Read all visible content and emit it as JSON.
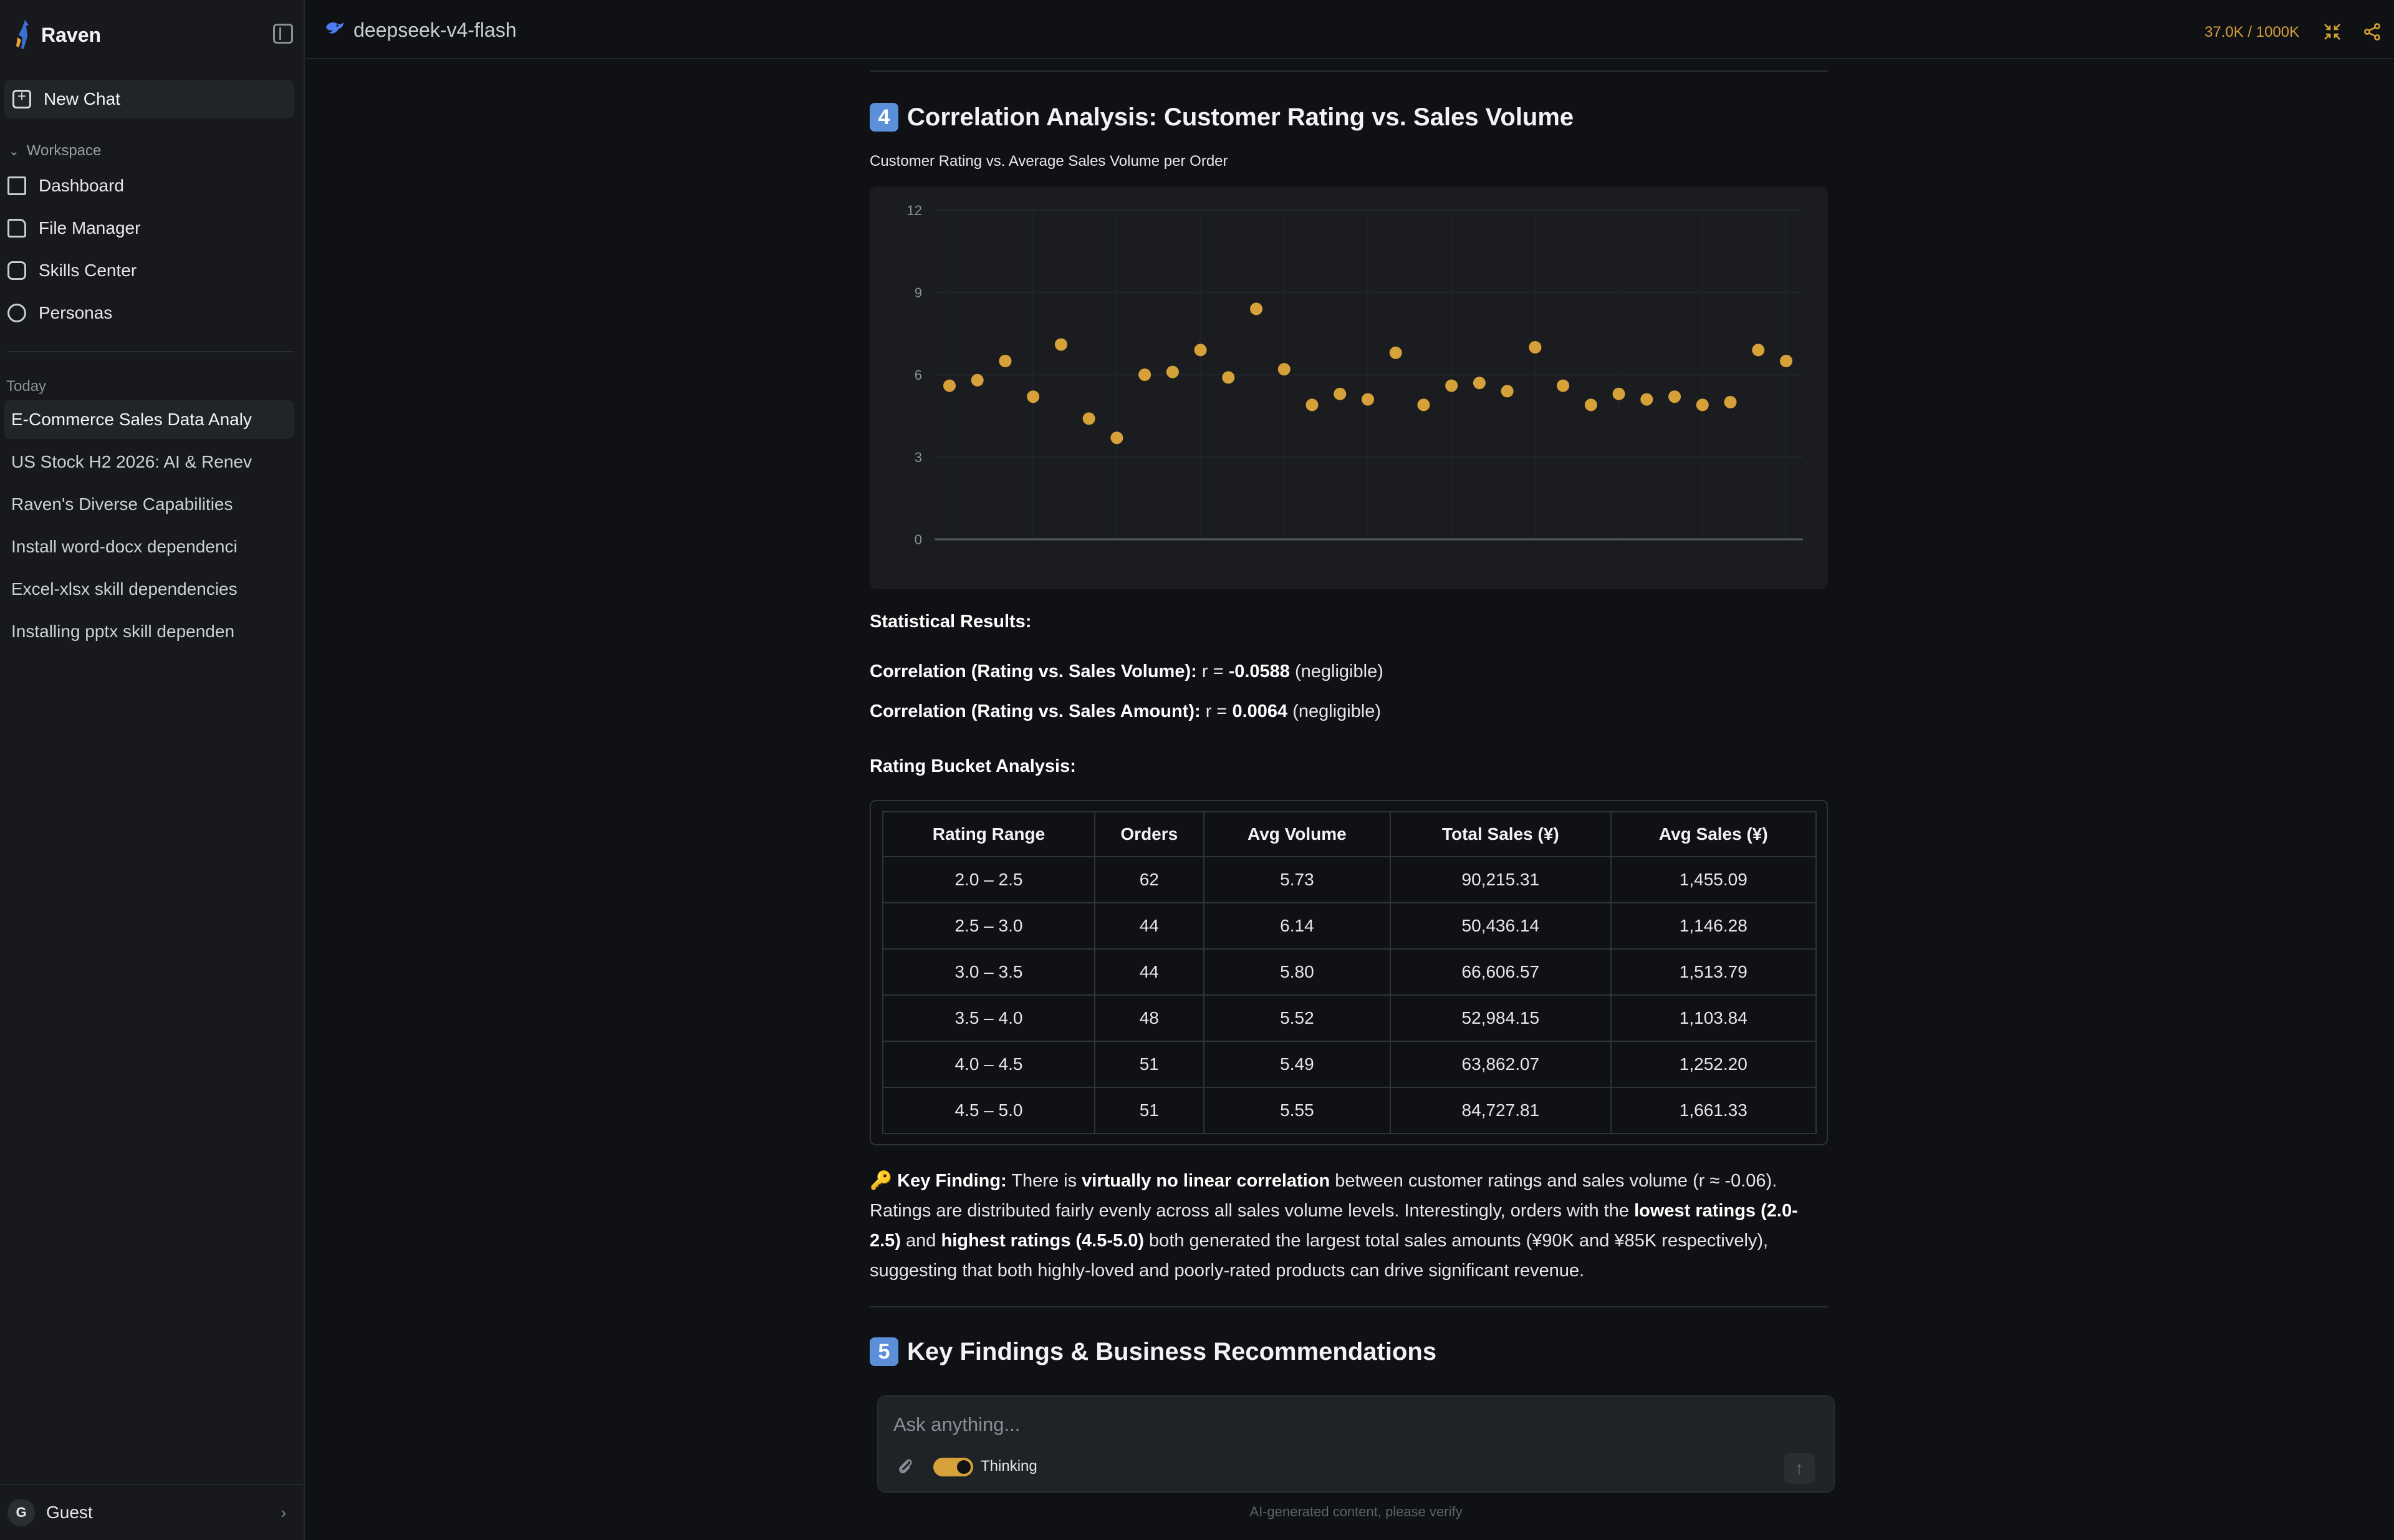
{
  "sidebar": {
    "brand": "Raven",
    "new_chat": "New Chat",
    "workspace_label": "Workspace",
    "nav": [
      {
        "label": "Dashboard",
        "icon": "dashboard-icon"
      },
      {
        "label": "File Manager",
        "icon": "folder-icon"
      },
      {
        "label": "Skills Center",
        "icon": "puzzle-icon"
      },
      {
        "label": "Personas",
        "icon": "palette-icon"
      }
    ],
    "today_label": "Today",
    "history": [
      "E-Commerce Sales Data Analy",
      "US Stock H2 2026: AI & Renev",
      "Raven's Diverse Capabilities",
      "Install word-docx dependenci",
      "Excel-xlsx skill dependencies",
      "Installing pptx skill dependen"
    ],
    "user_initial": "G",
    "user_name": "Guest"
  },
  "topbar": {
    "model_name": "deepseek-v4-flash",
    "tokens": "37.0K / 1000K"
  },
  "section4": {
    "number": "4",
    "title": "Correlation Analysis: Customer Rating vs. Sales Volume"
  },
  "chart_data": {
    "type": "scatter",
    "title": "Customer Rating vs. Average Sales Volume per Order",
    "xlabel": "",
    "ylabel": "",
    "ylim": [
      0,
      12
    ],
    "yticks": [
      "12",
      "9",
      "6",
      "3",
      "0"
    ],
    "grid": true,
    "color": "#d7a13a",
    "y": [
      5.6,
      5.8,
      6.5,
      5.2,
      7.1,
      4.4,
      3.7,
      6.0,
      6.1,
      6.9,
      5.9,
      8.4,
      6.2,
      4.9,
      5.3,
      5.1,
      6.8,
      4.9,
      5.6,
      5.7,
      5.4,
      7.0,
      5.6,
      4.9,
      5.3,
      5.1,
      5.2,
      4.9,
      5.0,
      6.9,
      6.5
    ]
  },
  "stats": {
    "heading": "Statistical Results:",
    "line1_label": "Correlation (Rating vs. Sales Volume):",
    "line1_r": "r = ",
    "line1_value": "-0.0588",
    "line1_note": "(negligible)",
    "line2_label": "Correlation (Rating vs. Sales Amount):",
    "line2_r": "r = ",
    "line2_value": "0.0064",
    "line2_note": "(negligible)"
  },
  "bucket": {
    "heading": "Rating Bucket Analysis:",
    "columns": [
      "Rating Range",
      "Orders",
      "Avg Volume",
      "Total Sales (¥)",
      "Avg Sales (¥)"
    ],
    "rows": [
      [
        "2.0 – 2.5",
        "62",
        "5.73",
        "90,215.31",
        "1,455.09"
      ],
      [
        "2.5 – 3.0",
        "44",
        "6.14",
        "50,436.14",
        "1,146.28"
      ],
      [
        "3.0 – 3.5",
        "44",
        "5.80",
        "66,606.57",
        "1,513.79"
      ],
      [
        "3.5 – 4.0",
        "48",
        "5.52",
        "52,984.15",
        "1,103.84"
      ],
      [
        "4.0 – 4.5",
        "51",
        "5.49",
        "63,862.07",
        "1,252.20"
      ],
      [
        "4.5 – 5.0",
        "51",
        "5.55",
        "84,727.81",
        "1,661.33"
      ]
    ]
  },
  "key_finding": {
    "emoji": "🔑",
    "label": "Key Finding:",
    "t1": " There is ",
    "b1": "virtually no linear correlation",
    "t2": " between customer ratings and sales volume (r ≈ -0.06). Ratings are distributed fairly evenly across all sales volume levels. Interestingly, orders with the ",
    "b2": "lowest ratings (2.0-2.5)",
    "t3": " and ",
    "b3": "highest ratings (4.5-5.0)",
    "t4": " both generated the largest total sales amounts (¥90K and ¥85K respectively), suggesting that both highly-loved and poorly-rated products can drive significant revenue."
  },
  "section5": {
    "number": "5",
    "title": "Key Findings & Business Recommendations"
  },
  "composer": {
    "placeholder": "Ask anything...",
    "thinking_label": "Thinking",
    "disclaimer": "AI-generated content, please verify"
  }
}
